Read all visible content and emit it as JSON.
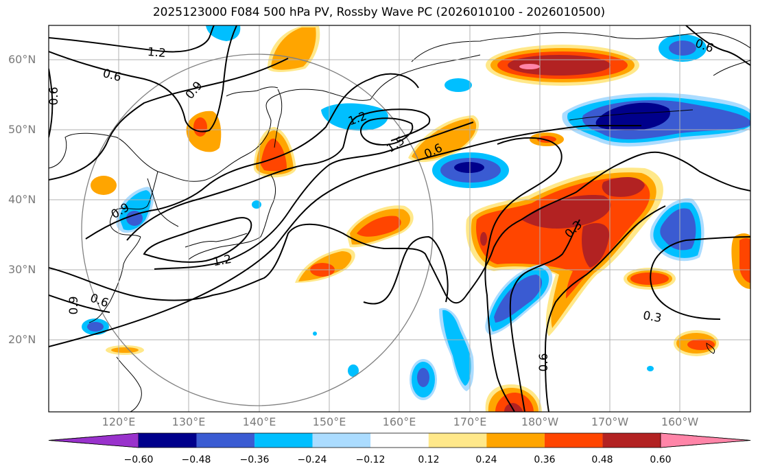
{
  "title": "2025123000 F084 500 hPa PV, Rossby Wave PC (2026010100 - 2026010500)",
  "map": {
    "lat_labels": [
      "60°N",
      "50°N",
      "40°N",
      "30°N",
      "20°N"
    ],
    "lon_labels": [
      "120°E",
      "130°E",
      "140°E",
      "150°E",
      "160°E",
      "170°E",
      "180°W",
      "170°W",
      "160°W"
    ],
    "contour_labels": [
      "1.2",
      "0.6",
      "0.6",
      "0.9",
      "1.2",
      "1.5",
      "0.6",
      "0.6",
      "0.3",
      "0.3",
      "0.6",
      "1.2",
      "0.6",
      "0.9",
      "0.9"
    ]
  },
  "colorbar": {
    "ticks": [
      "−0.60",
      "−0.48",
      "−0.36",
      "−0.24",
      "−0.12",
      "0.12",
      "0.24",
      "0.36",
      "0.48",
      "0.60"
    ],
    "colors": [
      "#9932cc",
      "#00008b",
      "#3a5bd2",
      "#00bfff",
      "#abdcff",
      "#ffffff",
      "#ffe88a",
      "#ffa500",
      "#ff4500",
      "#b22222",
      "#ff85a8"
    ]
  }
}
